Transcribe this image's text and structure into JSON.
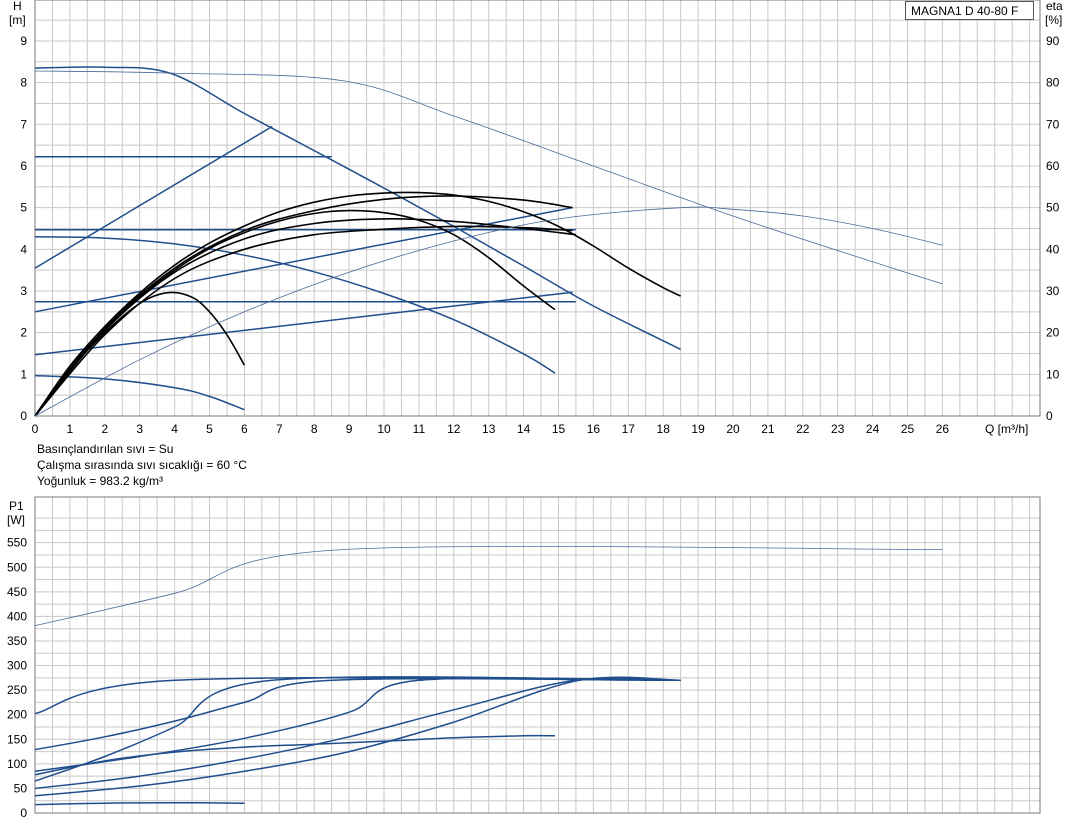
{
  "model": "MAGNA1 D 40-80 F",
  "info": {
    "fluid": "Basınçlandırılan sıvı = Su",
    "temperature": "Çalışma sırasında sıvı sıcaklığı = 60 °C",
    "density": "Yoğunluk = 983.2 kg/m³"
  },
  "colors": {
    "grid": "#c8c8c8",
    "curve_blue": "#1f4e8c",
    "curve_black": "#000000",
    "efficiency_thin": "#4a6a9a"
  },
  "chart_data": [
    {
      "type": "line",
      "title": "",
      "xlabel": "Q [m³/h]",
      "xlim": [
        0,
        27
      ],
      "x_ticks": [
        0,
        1,
        2,
        3,
        4,
        5,
        6,
        7,
        8,
        9,
        10,
        11,
        12,
        13,
        14,
        15,
        16,
        17,
        18,
        19,
        20,
        21,
        22,
        23,
        24,
        25,
        26
      ],
      "ylabel_left_name": "H",
      "ylabel_left_unit": "[m]",
      "ylim_left": [
        0,
        9
      ],
      "y_ticks_left": [
        0,
        1,
        2,
        3,
        4,
        5,
        6,
        7,
        8,
        9
      ],
      "ylabel_right_name": "eta",
      "ylabel_right_unit": "[%]",
      "ylim_right": [
        0,
        90
      ],
      "y_ticks_right": [
        0,
        10,
        20,
        30,
        40,
        50,
        60,
        70,
        80,
        90
      ],
      "grid": true,
      "series": [
        {
          "axis": "left",
          "style": "blue",
          "x": [
            0,
            2,
            3.9,
            6,
            8,
            10,
            12,
            14,
            16,
            18.5
          ],
          "values": [
            8.35,
            8.37,
            8.22,
            7.26,
            6.37,
            5.47,
            4.55,
            3.6,
            2.64,
            1.6
          ]
        },
        {
          "axis": "left",
          "style": "blue",
          "x": [
            0,
            8.5
          ],
          "values": [
            6.22,
            6.22
          ]
        },
        {
          "axis": "left",
          "style": "blue",
          "x": [
            0,
            6.8
          ],
          "values": [
            3.55,
            6.95
          ]
        },
        {
          "axis": "left",
          "style": "blue",
          "x": [
            0,
            15.5
          ],
          "values": [
            4.47,
            4.47
          ]
        },
        {
          "axis": "left",
          "style": "blue",
          "x": [
            0,
            15.5
          ],
          "values": [
            2.74,
            2.74
          ]
        },
        {
          "axis": "left",
          "style": "blue",
          "x": [
            0,
            15.4
          ],
          "values": [
            2.5,
            5.0
          ]
        },
        {
          "axis": "left",
          "style": "blue",
          "x": [
            0,
            15.4
          ],
          "values": [
            1.47,
            2.97
          ]
        },
        {
          "axis": "left",
          "style": "blue",
          "x": [
            0,
            2,
            4,
            6,
            8,
            10,
            12,
            14,
            14.9
          ],
          "values": [
            4.3,
            4.27,
            4.13,
            3.86,
            3.46,
            2.94,
            2.31,
            1.49,
            1.03
          ]
        },
        {
          "axis": "left",
          "style": "blue",
          "x": [
            0,
            2,
            4,
            5,
            6
          ],
          "values": [
            0.97,
            0.89,
            0.68,
            0.47,
            0.15
          ]
        },
        {
          "axis": "left",
          "style": "black",
          "x": [
            0,
            1,
            2,
            3,
            4,
            5,
            6,
            7,
            8,
            9,
            10,
            11,
            12,
            13,
            14,
            15,
            16,
            17,
            18,
            18.5
          ],
          "values": [
            0,
            1.2,
            2.15,
            2.95,
            3.62,
            4.15,
            4.56,
            4.9,
            5.13,
            5.28,
            5.35,
            5.36,
            5.3,
            5.15,
            4.9,
            4.55,
            4.08,
            3.55,
            3.08,
            2.88
          ]
        },
        {
          "axis": "left",
          "style": "black",
          "x": [
            0,
            1,
            2,
            3,
            4,
            5,
            6,
            7,
            8,
            9,
            10,
            11,
            12,
            13,
            14,
            14.9
          ],
          "values": [
            0,
            1.16,
            2.08,
            2.86,
            3.5,
            4.02,
            4.4,
            4.68,
            4.86,
            4.93,
            4.88,
            4.7,
            4.35,
            3.8,
            3.12,
            2.55
          ]
        },
        {
          "axis": "left",
          "style": "black",
          "x": [
            0,
            2,
            4,
            6,
            8,
            10,
            12,
            14,
            15.5
          ],
          "values": [
            0,
            2.05,
            3.45,
            4.25,
            4.62,
            4.73,
            4.67,
            4.5,
            4.35
          ]
        },
        {
          "axis": "left",
          "style": "black",
          "x": [
            0,
            2,
            4,
            6,
            8,
            10,
            12,
            14,
            15.4
          ],
          "values": [
            0,
            2.1,
            3.55,
            4.45,
            4.93,
            5.2,
            5.28,
            5.18,
            5.0
          ]
        },
        {
          "axis": "left",
          "style": "black",
          "x": [
            0,
            2,
            4,
            6,
            8,
            10,
            12,
            14,
            15.4
          ],
          "values": [
            0,
            1.95,
            3.3,
            4.0,
            4.35,
            4.48,
            4.55,
            4.52,
            4.45
          ]
        },
        {
          "axis": "left",
          "style": "black",
          "x": [
            0,
            1,
            2,
            3,
            3.8,
            4.5,
            5,
            5.5,
            6
          ],
          "values": [
            0,
            1.1,
            2.0,
            2.7,
            2.96,
            2.85,
            2.5,
            1.95,
            1.22
          ]
        },
        {
          "axis": "right",
          "style": "thin",
          "x": [
            0,
            3.9,
            8.8,
            12,
            16,
            20,
            24,
            26
          ],
          "values": [
            82.8,
            82.3,
            80.5,
            72,
            60,
            48,
            37,
            31.7
          ]
        },
        {
          "axis": "right",
          "style": "thin",
          "x": [
            0,
            3,
            6,
            9,
            12,
            15,
            18.5,
            20,
            22,
            24,
            26
          ],
          "values": [
            0,
            13.5,
            25,
            34.5,
            42,
            47.3,
            50,
            49.6,
            48,
            45,
            41
          ]
        }
      ]
    },
    {
      "type": "line",
      "title": "",
      "xlabel": "",
      "xlim": [
        0,
        27
      ],
      "ylabel_name": "P1",
      "ylabel_unit": "[W]",
      "ylim": [
        0,
        600
      ],
      "y_ticks": [
        0,
        50,
        100,
        150,
        200,
        250,
        300,
        350,
        400,
        450,
        500,
        550
      ],
      "grid": true,
      "series": [
        {
          "style": "thin",
          "x": [
            0,
            4,
            8.8,
            26
          ],
          "values": [
            381,
            447,
            536,
            536
          ]
        },
        {
          "style": "blue",
          "x": [
            0,
            4,
            18.5
          ],
          "values": [
            202,
            270,
            270
          ]
        },
        {
          "style": "blue",
          "x": [
            0,
            2,
            4,
            6,
            8.5,
            18.5
          ],
          "values": [
            129,
            155,
            187,
            225,
            270,
            270
          ]
        },
        {
          "style": "blue",
          "x": [
            0,
            2,
            4,
            6.8,
            18.5
          ],
          "values": [
            65,
            115,
            175,
            270,
            270
          ]
        },
        {
          "style": "blue",
          "x": [
            0,
            3,
            6,
            9,
            11,
            18.5
          ],
          "values": [
            85,
            115,
            152,
            205,
            270,
            270
          ]
        },
        {
          "style": "blue",
          "x": [
            0,
            3,
            6,
            9,
            12,
            15.5,
            18.5
          ],
          "values": [
            50,
            75,
            110,
            155,
            210,
            270,
            270
          ]
        },
        {
          "style": "blue",
          "x": [
            0,
            3,
            6,
            9,
            12,
            15.6,
            18.5
          ],
          "values": [
            35,
            55,
            85,
            125,
            185,
            270,
            270
          ]
        },
        {
          "style": "blue",
          "x": [
            0,
            2,
            4,
            6,
            8,
            10,
            12,
            14,
            14.9
          ],
          "values": [
            78,
            106,
            124,
            134,
            140,
            146,
            153,
            157,
            157
          ]
        },
        {
          "style": "blue",
          "x": [
            0,
            2,
            4,
            6
          ],
          "values": [
            17,
            20,
            21,
            20
          ]
        }
      ]
    }
  ]
}
